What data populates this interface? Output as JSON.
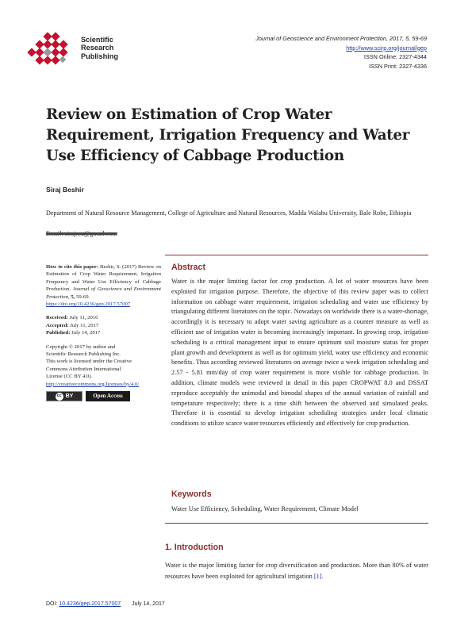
{
  "publisher": {
    "lines": [
      "Scientific",
      "Research",
      "Publishing"
    ],
    "brand_color": "#c8102e"
  },
  "journal": {
    "citation": "Journal of Geoscience and Environment Protection, 2017, 5, 59-69",
    "url": "http://www.scirp.org/journal/gep",
    "issn_online": "ISSN Online: 2327-4344",
    "issn_print": "ISSN Print: 2327-4336"
  },
  "paper": {
    "title": "Review on Estimation of Crop Water Requirement, Irrigation Frequency and Water Use Efficiency of Cabbage Production",
    "author": "Siraj Beshir",
    "affiliation": "Department of Natural Resource Management, College of Agriculture and Natural Resources, Madda Walabu Univeraity, Bale Robe, Ethiopia",
    "email": "Email: sirajmu@gmail.com"
  },
  "sidebar": {
    "cite_label": "How to cite this paper:",
    "cite_text": "Beshir, S. (2017) Review on Estimation of Crop Water Requirement, Irrigation Frequency and Water Use Efficiency of Cabbage Production.",
    "cite_journal": "Journal of Geoscience and Environment Protection,",
    "cite_volume": "5,",
    "cite_pages": "59-69.",
    "doi_url": "https://doi.org/10.4236/gep.2017.57007",
    "received_label": "Received:",
    "received": "July 11, 2016",
    "accepted_label": "Accepted:",
    "accepted": "July 11, 2017",
    "published_label": "Published:",
    "published": "July 14, 2017",
    "copyright_1": "Copyright © 2017 by author and",
    "copyright_2": "Scientific Research Publishing Inc.",
    "license_1": "This work is licensed under the Creative",
    "license_2": "Commons Attribution International",
    "license_3": "License (CC BY 4.0).",
    "license_url": "http://creativecommons.org/licenses/by/4.0/",
    "cc_badge": "cc",
    "cc_by": "BY",
    "open_access": "Open Access"
  },
  "abstract": {
    "heading": "Abstract",
    "text": "Water is the major limiting factor for crop production. A lot of water resources have been exploited for irrigation purpose. Therefore, the objective of this review paper was to collect information on cabbage water requirement, irrigation scheduling and water use efficiency by triangulating different literatures on the topic. Nowadays on worldwide there is a water-shortage, accordingly it is necessary to adopt water saving agriculture as a counter measure as well as efficient use of irrigation water is becoming increasingly important. In growing crop, irrigation scheduling is a critical management input to ensure optimum soil moisture status for proper plant growth and development as well as for optimum yield, water use efficiency and economic benefits. Thus according reviewed literatures on average twice a week irrigation scheduling and 2.57 - 5.81 mm/day of crop water requirement is more visible for cabbage production. In addition, climate models were reviewed in detail in this paper CROPWAT 8.0 and DSSAT reproduce acceptably the unimodal and bimodal shapes of the annual variation of rainfall and temperature respectively; there is a time shift between the observed and simulated peaks. Therefore it is essential to develop irrigation scheduling strategies under local climatic conditions to utilize scarce water resources efficiently and effectively for crop production."
  },
  "keywords": {
    "heading": "Keywords",
    "text": "Water Use Efficiency, Scheduling, Water Requirement, Climate Model"
  },
  "introduction": {
    "heading": "1. Introduction",
    "text": "Water is the major limiting factor for crop diversification and production. More than 80% of water resources have been exploited for agricultural irrigation",
    "citation": "[1]."
  },
  "footer": {
    "doi_label": "DOI:",
    "doi": "10.4236/gep.2017.57007",
    "date": "July 14, 2017"
  }
}
